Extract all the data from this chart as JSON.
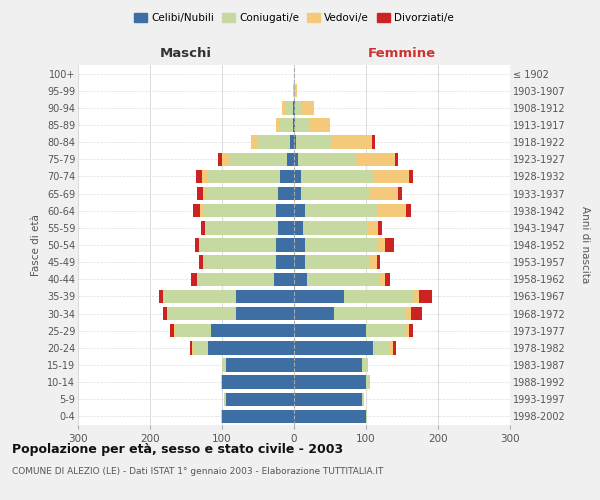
{
  "age_groups": [
    "0-4",
    "5-9",
    "10-14",
    "15-19",
    "20-24",
    "25-29",
    "30-34",
    "35-39",
    "40-44",
    "45-49",
    "50-54",
    "55-59",
    "60-64",
    "65-69",
    "70-74",
    "75-79",
    "80-84",
    "85-89",
    "90-94",
    "95-99",
    "100+"
  ],
  "birth_years": [
    "1998-2002",
    "1993-1997",
    "1988-1992",
    "1983-1987",
    "1978-1982",
    "1973-1977",
    "1968-1972",
    "1963-1967",
    "1958-1962",
    "1953-1957",
    "1948-1952",
    "1943-1947",
    "1938-1942",
    "1933-1937",
    "1928-1932",
    "1923-1927",
    "1918-1922",
    "1913-1917",
    "1908-1912",
    "1903-1907",
    "≤ 1902"
  ],
  "male": {
    "celibi": [
      100,
      95,
      100,
      95,
      120,
      115,
      80,
      80,
      28,
      25,
      25,
      22,
      25,
      22,
      20,
      10,
      5,
      2,
      2,
      0,
      0
    ],
    "coniugati": [
      2,
      2,
      2,
      5,
      20,
      50,
      95,
      100,
      105,
      100,
      105,
      100,
      100,
      100,
      100,
      80,
      45,
      18,
      10,
      2,
      0
    ],
    "vedovi": [
      0,
      0,
      0,
      0,
      2,
      2,
      2,
      2,
      2,
      2,
      2,
      2,
      5,
      5,
      8,
      10,
      10,
      5,
      5,
      0,
      0
    ],
    "divorziati": [
      0,
      0,
      0,
      0,
      2,
      5,
      5,
      5,
      8,
      5,
      5,
      5,
      10,
      8,
      8,
      5,
      0,
      0,
      0,
      0,
      0
    ]
  },
  "female": {
    "nubili": [
      100,
      95,
      100,
      95,
      110,
      100,
      55,
      70,
      18,
      15,
      15,
      12,
      15,
      10,
      10,
      5,
      3,
      2,
      2,
      0,
      0
    ],
    "coniugate": [
      2,
      2,
      5,
      8,
      22,
      55,
      100,
      95,
      100,
      90,
      100,
      90,
      100,
      95,
      100,
      80,
      50,
      20,
      8,
      2,
      0
    ],
    "vedove": [
      0,
      0,
      0,
      0,
      5,
      5,
      8,
      8,
      8,
      10,
      12,
      15,
      40,
      40,
      50,
      55,
      55,
      28,
      18,
      2,
      0
    ],
    "divorziate": [
      0,
      0,
      0,
      0,
      5,
      5,
      15,
      18,
      8,
      5,
      12,
      5,
      8,
      5,
      5,
      5,
      5,
      0,
      0,
      0,
      0
    ]
  },
  "colors": {
    "celibi": "#3d6fa5",
    "coniugati": "#c5d9a0",
    "vedovi": "#f5c97a",
    "divorziati": "#cc2222"
  },
  "title": "Popolazione per età, sesso e stato civile - 2003",
  "subtitle": "COMUNE DI ALEZIO (LE) - Dati ISTAT 1° gennaio 2003 - Elaborazione TUTTITALIA.IT",
  "xlabel_left": "Maschi",
  "xlabel_right": "Femmine",
  "ylabel_left": "Fasce di età",
  "ylabel_right": "Anni di nascita",
  "xlim": 300,
  "background_color": "#f0f0f0",
  "plot_bg_color": "#ffffff",
  "legend_labels": [
    "Celibi/Nubili",
    "Coniugati/e",
    "Vedovi/e",
    "Divorziati/e"
  ]
}
